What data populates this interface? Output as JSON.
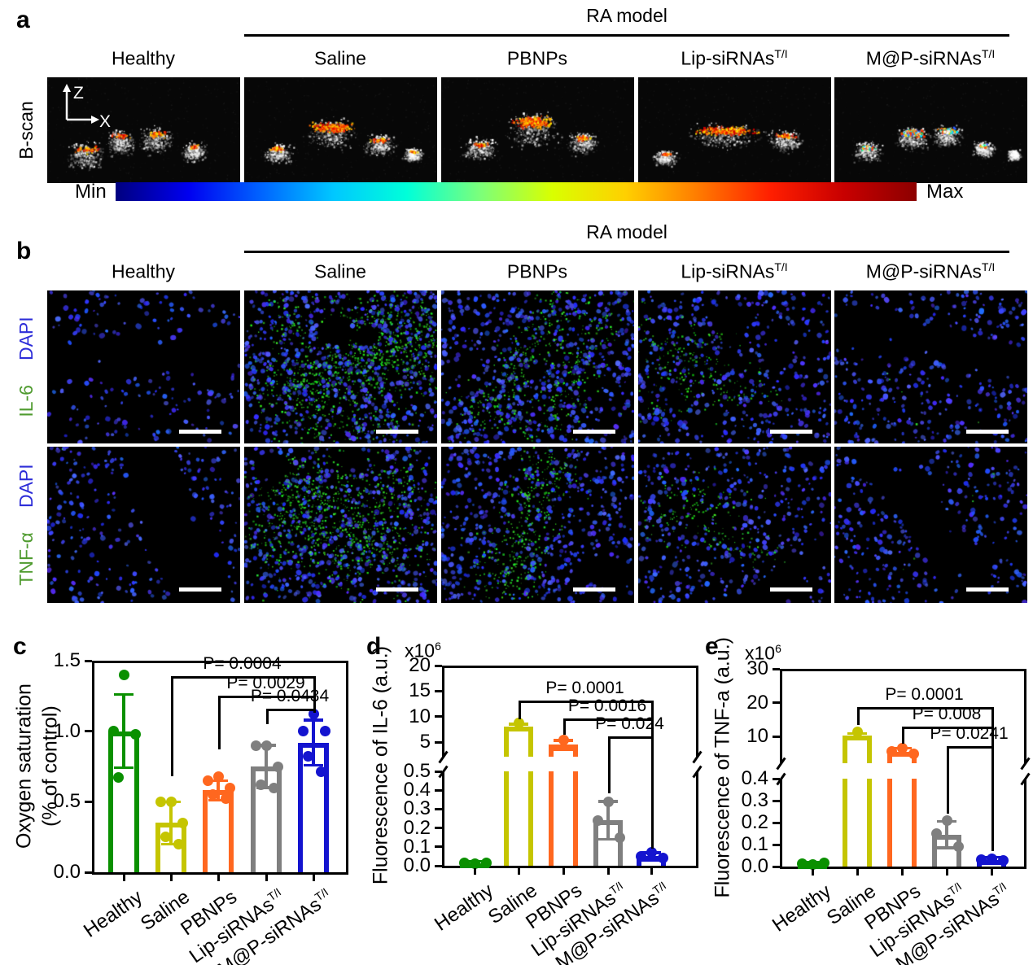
{
  "panels": {
    "a": {
      "tag": "a",
      "header": "RA model",
      "row_label": "B-scan",
      "axis_z": "Z",
      "axis_x": "X",
      "colorbar_min": "Min",
      "colorbar_max": "Max"
    },
    "b": {
      "tag": "b",
      "header": "RA model",
      "rows": [
        {
          "marker": "IL-6",
          "counterstain": "DAPI"
        },
        {
          "marker": "TNF-α",
          "counterstain": "DAPI"
        }
      ]
    }
  },
  "groups": [
    {
      "label": "Healthy",
      "sup": "",
      "color": "#0a9000"
    },
    {
      "label": "Saline",
      "sup": "",
      "color": "#c5c500"
    },
    {
      "label": "PBNPs",
      "sup": "",
      "color": "#ff671f"
    },
    {
      "label": "Lip-siRNAs",
      "sup": "T/I",
      "color": "#7f7f7f"
    },
    {
      "label": "M@P-siRNAs",
      "sup": "T/I",
      "color": "#1414cf"
    }
  ],
  "colors": {
    "dapi_label": "#2d2dd8",
    "marker_label": "#4f9b2f",
    "scalebar": "#ffffff",
    "colorbar_gradient": [
      "#00007f",
      "#0000f0",
      "#0064ff",
      "#00c8ff",
      "#00ffd9",
      "#7bff7b",
      "#d9ff00",
      "#ffd000",
      "#ff7b00",
      "#ff1e00",
      "#c80000",
      "#8c0000"
    ]
  },
  "chart_data": [
    {
      "panel": "c",
      "type": "bar",
      "bar_style": "outline",
      "ylim": [
        0,
        1.5
      ],
      "ylabel_lines": [
        "Oxygen saturation",
        "(% of control)"
      ],
      "yticks": [
        "0.0",
        "0.5",
        "1.0",
        "1.5"
      ],
      "categories": [
        "Healthy",
        "Saline",
        "PBNPs",
        "Lip-siRNAs T/I",
        "M@P-siRNAs T/I"
      ],
      "values": [
        1.0,
        0.35,
        0.58,
        0.75,
        0.92
      ],
      "errors": [
        0.26,
        0.15,
        0.07,
        0.15,
        0.16
      ],
      "points": [
        [
          1.4,
          1.0,
          0.98,
          0.67
        ],
        [
          0.5,
          0.5,
          0.35,
          0.25,
          0.2
        ],
        [
          0.68,
          0.65,
          0.6,
          0.55,
          0.52
        ],
        [
          0.9,
          0.9,
          0.75,
          0.62,
          0.6
        ],
        [
          1.12,
          1.0,
          1.0,
          0.82,
          0.71
        ]
      ],
      "pvalues": [
        {
          "label": "P= 0.0004",
          "from": "Saline",
          "to": "M@P-siRNAs T/I",
          "from_i": 1,
          "to_i": 4
        },
        {
          "label": "P= 0.0029",
          "from": "PBNPs",
          "to": "M@P-siRNAs T/I",
          "from_i": 2,
          "to_i": 4
        },
        {
          "label": "P= 0.0434",
          "from": "Lip-siRNAs T/I",
          "to": "M@P-siRNAs T/I",
          "from_i": 3,
          "to_i": 4
        }
      ]
    },
    {
      "panel": "d",
      "type": "bar",
      "bar_style": "outline",
      "axis_break": true,
      "ylabel_lines": [
        "Fluorescence of IL-6 (a.u.)"
      ],
      "multiplier": "x10",
      "multiplier_exp": "6",
      "yticks_lower": [
        "0.0",
        "0.1",
        "0.2",
        "0.3",
        "0.4",
        "0.5"
      ],
      "yticks_upper": [
        "5",
        "10",
        "15",
        "20"
      ],
      "categories": [
        "Healthy",
        "Saline",
        "PBNPs",
        "Lip-siRNAs T/I",
        "M@P-siRNAs T/I"
      ],
      "values": [
        0.015,
        8.0,
        4.6,
        0.24,
        0.05
      ],
      "errors": [
        0.008,
        0.5,
        0.7,
        0.1,
        0.02
      ],
      "points": [
        [
          0.01,
          0.013,
          0.016
        ],
        [
          8.8
        ],
        [
          5.4
        ],
        [
          0.34,
          0.24,
          0.15
        ],
        [
          0.07,
          0.05,
          0.04
        ]
      ],
      "pvalues": [
        {
          "label": "P= 0.0001",
          "from": "Saline",
          "to": "M@P-siRNAs T/I",
          "from_i": 1,
          "to_i": 4
        },
        {
          "label": "P= 0.0016",
          "from": "PBNPs",
          "to": "M@P-siRNAs T/I",
          "from_i": 2,
          "to_i": 4
        },
        {
          "label": "P= 0.024",
          "from": "Lip-siRNAs T/I",
          "to": "M@P-siRNAs T/I",
          "from_i": 3,
          "to_i": 4
        }
      ]
    },
    {
      "panel": "e",
      "type": "bar",
      "bar_style": "outline",
      "axis_break": true,
      "ylabel_lines": [
        "Fluorescence of TNF-a (a.u.)"
      ],
      "multiplier": "x10",
      "multiplier_exp": "6",
      "yticks_lower": [
        "0.0",
        "0.1",
        "0.2",
        "0.3",
        "0.4"
      ],
      "yticks_upper": [
        "10",
        "20",
        "30"
      ],
      "categories": [
        "Healthy",
        "Saline",
        "PBNPs",
        "Lip-siRNAs T/I",
        "M@P-siRNAs T/I"
      ],
      "values": [
        0.012,
        10.3,
        6.5,
        0.145,
        0.03
      ],
      "errors": [
        0.006,
        0.6,
        0.8,
        0.06,
        0.012
      ],
      "points": [
        [
          0.01,
          0.012,
          0.015
        ],
        [
          11.4
        ],
        [
          7.3,
          6.6,
          6.0
        ],
        [
          0.21,
          0.15,
          0.09
        ],
        [
          0.035,
          0.03,
          0.027
        ]
      ],
      "pvalues": [
        {
          "label": "P= 0.0001",
          "from": "Saline",
          "to": "M@P-siRNAs T/I",
          "from_i": 1,
          "to_i": 4
        },
        {
          "label": "P= 0.008",
          "from": "PBNPs",
          "to": "M@P-siRNAs T/I",
          "from_i": 2,
          "to_i": 4
        },
        {
          "label": "P= 0.0241",
          "from": "Lip-siRNAs T/I",
          "to": "M@P-siRNAs T/I",
          "from_i": 3,
          "to_i": 4
        }
      ]
    }
  ]
}
